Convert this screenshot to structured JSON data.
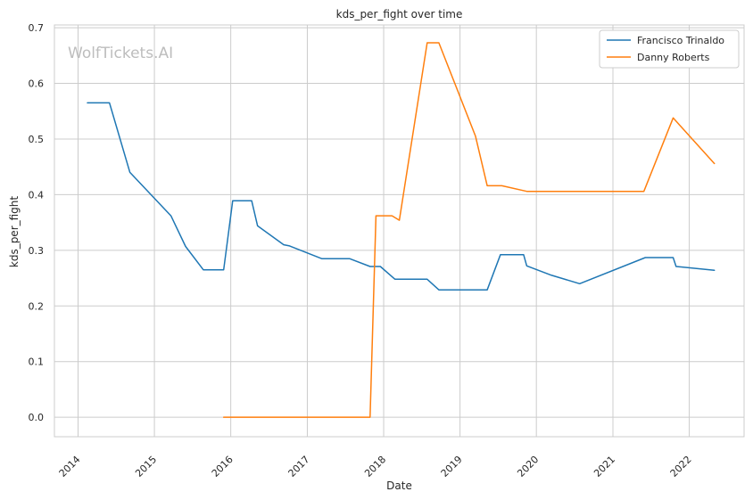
{
  "chart_data": {
    "type": "line",
    "title": "kds_per_fight over time",
    "xlabel": "Date",
    "ylabel": "kds_per_fight",
    "watermark": "WolfTickets.AI",
    "ylim": [
      -0.035,
      0.705
    ],
    "xlim": [
      "2013-09-10",
      "2022-09-20"
    ],
    "grid": true,
    "legend_position": "top-right",
    "x_ticks": [
      "2014",
      "2015",
      "2016",
      "2017",
      "2018",
      "2019",
      "2020",
      "2021",
      "2022"
    ],
    "y_ticks": [
      "0.0",
      "0.1",
      "0.2",
      "0.3",
      "0.4",
      "0.5",
      "0.6",
      "0.7"
    ],
    "series": [
      {
        "name": "Francisco Trinaldo",
        "color": "#1f77b4",
        "points": [
          [
            "2014-02-15",
            0.565
          ],
          [
            "2014-05-31",
            0.565
          ],
          [
            "2014-09-06",
            0.44
          ],
          [
            "2015-03-21",
            0.362
          ],
          [
            "2015-05-30",
            0.307
          ],
          [
            "2015-08-23",
            0.265
          ],
          [
            "2015-11-28",
            0.265
          ],
          [
            "2016-01-10",
            0.389
          ],
          [
            "2016-04-10",
            0.389
          ],
          [
            "2016-05-08",
            0.344
          ],
          [
            "2016-09-10",
            0.31
          ],
          [
            "2016-10-08",
            0.308
          ],
          [
            "2017-03-11",
            0.285
          ],
          [
            "2017-07-22",
            0.285
          ],
          [
            "2017-10-28",
            0.271
          ],
          [
            "2017-12-16",
            0.271
          ],
          [
            "2018-02-24",
            0.248
          ],
          [
            "2018-07-28",
            0.248
          ],
          [
            "2018-09-22",
            0.229
          ],
          [
            "2019-05-11",
            0.229
          ],
          [
            "2019-07-13",
            0.292
          ],
          [
            "2019-11-01",
            0.292
          ],
          [
            "2019-11-16",
            0.272
          ],
          [
            "2020-03-14",
            0.255
          ],
          [
            "2020-07-26",
            0.24
          ],
          [
            "2021-06-05",
            0.287
          ],
          [
            "2021-10-16",
            0.287
          ],
          [
            "2021-10-30",
            0.271
          ],
          [
            "2022-05-01",
            0.264
          ]
        ]
      },
      {
        "name": "Danny Roberts",
        "color": "#ff7f0e",
        "points": [
          [
            "2015-11-28",
            0.0
          ],
          [
            "2017-10-28",
            0.0
          ],
          [
            "2017-11-25",
            0.362
          ],
          [
            "2018-02-10",
            0.362
          ],
          [
            "2018-03-17",
            0.354
          ],
          [
            "2018-07-28",
            0.673
          ],
          [
            "2018-09-22",
            0.673
          ],
          [
            "2019-03-16",
            0.505
          ],
          [
            "2019-05-11",
            0.416
          ],
          [
            "2019-07-20",
            0.416
          ],
          [
            "2019-11-16",
            0.406
          ],
          [
            "2021-05-29",
            0.406
          ],
          [
            "2021-10-16",
            0.538
          ],
          [
            "2022-05-01",
            0.456
          ]
        ]
      }
    ]
  }
}
